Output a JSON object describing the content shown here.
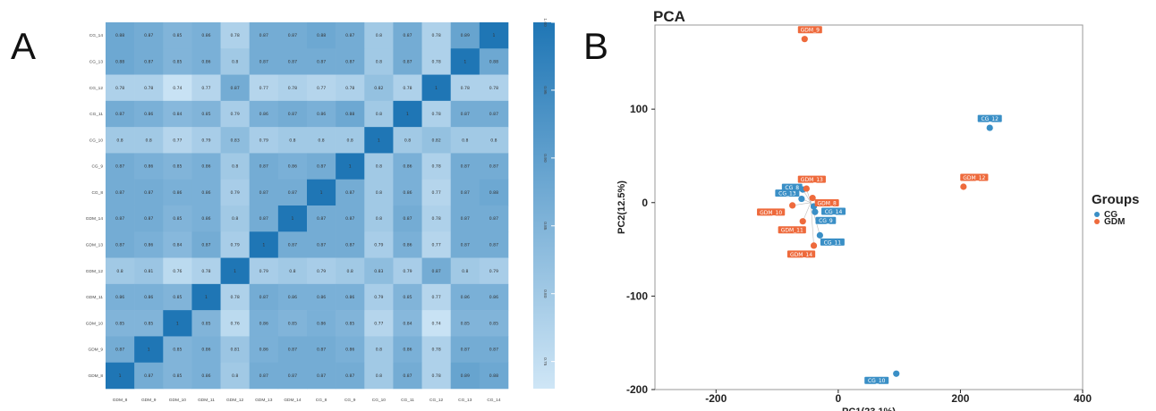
{
  "panel_labels": {
    "a": "A",
    "b": "B"
  },
  "chart_data": [
    {
      "type": "heatmap",
      "title": "",
      "row_labels": [
        "CG_14",
        "CG_13",
        "CG_12",
        "CG_11",
        "CG_10",
        "CG_9",
        "CG_8",
        "GDM_14",
        "GDM_13",
        "GDM_12",
        "GDM_11",
        "GDM_10",
        "GDM_9",
        "GDM_8"
      ],
      "col_labels": [
        "GDM_8",
        "GDM_9",
        "GDM_10",
        "GDM_11",
        "GDM_12",
        "GDM_13",
        "GDM_14",
        "CG_8",
        "CG_9",
        "CG_10",
        "CG_11",
        "CG_12",
        "CG_13",
        "CG_14"
      ],
      "values": [
        [
          "0.88",
          "0.87",
          "0.85",
          "0.86",
          "0.78",
          "0.87",
          "0.87",
          "0.88",
          "0.87",
          "0.8",
          "0.87",
          "0.78",
          "0.89",
          "1"
        ],
        [
          "0.88",
          "0.87",
          "0.85",
          "0.86",
          "0.8",
          "0.87",
          "0.87",
          "0.87",
          "0.87",
          "0.8",
          "0.87",
          "0.78",
          "1",
          "0.88"
        ],
        [
          "0.78",
          "0.78",
          "0.74",
          "0.77",
          "0.87",
          "0.77",
          "0.78",
          "0.77",
          "0.78",
          "0.82",
          "0.78",
          "1",
          "0.78",
          "0.78"
        ],
        [
          "0.87",
          "0.86",
          "0.84",
          "0.85",
          "0.79",
          "0.86",
          "0.87",
          "0.86",
          "0.88",
          "0.8",
          "1",
          "0.78",
          "0.87",
          "0.87"
        ],
        [
          "0.8",
          "0.8",
          "0.77",
          "0.79",
          "0.83",
          "0.79",
          "0.8",
          "0.8",
          "0.8",
          "1",
          "0.8",
          "0.82",
          "0.8",
          "0.8"
        ],
        [
          "0.87",
          "0.86",
          "0.85",
          "0.86",
          "0.8",
          "0.87",
          "0.86",
          "0.87",
          "1",
          "0.8",
          "0.86",
          "0.78",
          "0.87",
          "0.87"
        ],
        [
          "0.87",
          "0.87",
          "0.86",
          "0.86",
          "0.79",
          "0.87",
          "0.87",
          "1",
          "0.87",
          "0.8",
          "0.86",
          "0.77",
          "0.87",
          "0.88"
        ],
        [
          "0.87",
          "0.87",
          "0.85",
          "0.86",
          "0.8",
          "0.87",
          "1",
          "0.87",
          "0.87",
          "0.8",
          "0.87",
          "0.78",
          "0.87",
          "0.87"
        ],
        [
          "0.87",
          "0.86",
          "0.84",
          "0.87",
          "0.79",
          "1",
          "0.87",
          "0.87",
          "0.87",
          "0.79",
          "0.86",
          "0.77",
          "0.87",
          "0.87"
        ],
        [
          "0.8",
          "0.81",
          "0.76",
          "0.78",
          "1",
          "0.79",
          "0.8",
          "0.79",
          "0.8",
          "0.83",
          "0.79",
          "0.87",
          "0.8",
          "0.79"
        ],
        [
          "0.86",
          "0.86",
          "0.85",
          "1",
          "0.78",
          "0.87",
          "0.86",
          "0.86",
          "0.86",
          "0.79",
          "0.85",
          "0.77",
          "0.86",
          "0.86"
        ],
        [
          "0.85",
          "0.85",
          "1",
          "0.85",
          "0.76",
          "0.86",
          "0.85",
          "0.86",
          "0.85",
          "0.77",
          "0.84",
          "0.74",
          "0.85",
          "0.85"
        ],
        [
          "0.87",
          "1",
          "0.85",
          "0.86",
          "0.81",
          "0.86",
          "0.87",
          "0.87",
          "0.86",
          "0.8",
          "0.86",
          "0.78",
          "0.87",
          "0.87"
        ],
        [
          "1",
          "0.87",
          "0.85",
          "0.86",
          "0.8",
          "0.87",
          "0.87",
          "0.87",
          "0.87",
          "0.8",
          "0.87",
          "0.78",
          "0.89",
          "0.88"
        ]
      ],
      "color_scale": {
        "low": "#cfe6f6",
        "high": "#1f76b5",
        "range": [
          0.73,
          1.0
        ]
      },
      "colorbar_ticks": [
        "1.00",
        "0.95",
        "0.90",
        "0.85",
        "0.80",
        "0.75"
      ]
    },
    {
      "type": "scatter",
      "title": "PCA",
      "xlabel": "PC1(23.1%)",
      "ylabel": "PC2(12.5%)",
      "xlim": [
        -300,
        400
      ],
      "ylim": [
        -200,
        190
      ],
      "xticks": [
        "-200",
        "0",
        "200",
        "400"
      ],
      "yticks": [
        "100",
        "0",
        "-100",
        "-200"
      ],
      "legend_title": "Groups",
      "series": [
        {
          "name": "CG",
          "color": "#3a8fc6",
          "points": [
            {
              "label": "CG_12",
              "x": 248,
              "y": 80
            },
            {
              "label": "CG_8",
              "x": -58,
              "y": 14
            },
            {
              "label": "CG_13",
              "x": -60,
              "y": 4
            },
            {
              "label": "CG_14",
              "x": -40,
              "y": -4
            },
            {
              "label": "CG_9",
              "x": -38,
              "y": -10
            },
            {
              "label": "CG_11",
              "x": -30,
              "y": -35
            },
            {
              "label": "CG_10",
              "x": 95,
              "y": -183
            }
          ]
        },
        {
          "name": "GDM",
          "color": "#ee6a3c",
          "points": [
            {
              "label": "GDM_9",
              "x": -55,
              "y": 175
            },
            {
              "label": "GDM_12",
              "x": 205,
              "y": 17
            },
            {
              "label": "GDM_13",
              "x": -52,
              "y": 15
            },
            {
              "label": "GDM_8",
              "x": -42,
              "y": 5
            },
            {
              "label": "GDM_10",
              "x": -75,
              "y": -3
            },
            {
              "label": "GDM_11",
              "x": -58,
              "y": -20
            },
            {
              "label": "GDM_14",
              "x": -40,
              "y": -46
            }
          ]
        }
      ]
    }
  ]
}
